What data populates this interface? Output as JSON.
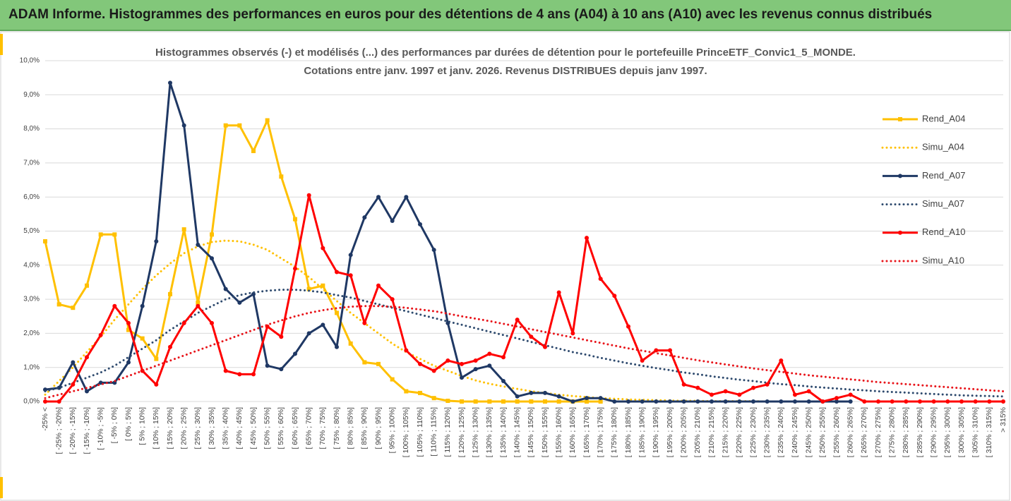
{
  "header": {
    "title": "ADAM Informe. Histogrammes des performances en euros pour des détentions de 4 ans (A04) à 10 ans (A10) avec les revenus connus distribués"
  },
  "chart_data": {
    "type": "line",
    "title": "Histogrammes observés (-) et modélisés (...) des performances  par durées de détention pour le portefeuille PrinceETF_Convic1_5_MONDE.",
    "subtitle": "Cotations  entre  janv. 1997 et janv. 2026. Revenus DISTRIBUES depuis janv 1997.",
    "categories": [
      "-25% <",
      "[ -25% ; -20%]",
      "[ -20% ; -15%]",
      "[ -15% ; -10%]",
      "[ -10% ; -5%]",
      "[ -5% ; 0%]",
      "[ 0% ; 5%]",
      "[ 5% ; 10%]",
      "[ 10% ; 15%]",
      "[ 15% ; 20%]",
      "[ 20% ; 25%]",
      "[ 25% ; 30%]",
      "[ 30% ; 35%]",
      "[ 35% ; 40%]",
      "[ 40% ; 45%]",
      "[ 45% ; 50%]",
      "[ 50% ; 55%]",
      "[ 55% ; 60%]",
      "[ 60% ; 65%]",
      "[ 65% ; 70%]",
      "[ 70% ; 75%]",
      "[ 75% ; 80%]",
      "[ 80% ; 85%]",
      "[ 85% ; 90%]",
      "[ 90% ; 95%]",
      "[ 95% ; 100%]",
      "[ 100% ; 105%]",
      "[ 105% ; 110%]",
      "[ 110% ; 115%]",
      "[ 115% ; 120%]",
      "[ 120% ; 125%]",
      "[ 125% ; 130%]",
      "[ 130% ; 135%]",
      "[ 135% ; 140%]",
      "[ 140% ; 145%]",
      "[ 145% ; 150%]",
      "[ 150% ; 155%]",
      "[ 155% ; 160%]",
      "[ 160% ; 165%]",
      "[ 165% ; 170%]",
      "[ 170% ; 175%]",
      "[ 175% ; 180%]",
      "[ 180% ; 185%]",
      "[ 185% ; 190%]",
      "[ 190% ; 195%]",
      "[ 195% ; 200%]",
      "[ 200% ; 205%]",
      "[ 205% ; 210%]",
      "[ 210% ; 215%]",
      "[ 215% ; 220%]",
      "[ 220% ; 225%]",
      "[ 225% ; 230%]",
      "[ 230% ; 235%]",
      "[ 235% ; 240%]",
      "[ 240% ; 245%]",
      "[ 245% ; 250%]",
      "[ 250% ; 255%]",
      "[ 255% ; 260%]",
      "[ 260% ; 265%]",
      "[ 265% ; 270%]",
      "[ 270% ; 275%]",
      "[ 275% ; 280%]",
      "[ 280% ; 285%]",
      "[ 285% ; 290%]",
      "[ 290% ; 295%]",
      "[ 295% ; 300%]",
      "[ 300% ; 305%]",
      "[ 305% ; 310%]",
      "[ 310% ; 315%]",
      "> 315%"
    ],
    "series": [
      {
        "name": "Rend_A04",
        "color": "#ffc000",
        "style": "solid",
        "marker": "square",
        "values": [
          4.7,
          2.85,
          2.75,
          3.4,
          4.9,
          4.9,
          2.1,
          1.85,
          1.25,
          3.15,
          5.05,
          2.9,
          4.9,
          8.1,
          8.1,
          7.35,
          8.25,
          6.6,
          5.35,
          3.3,
          3.4,
          2.6,
          1.7,
          1.15,
          1.1,
          0.65,
          0.3,
          0.25,
          0.1,
          0.02,
          0,
          0,
          0,
          0,
          0,
          0,
          0,
          0,
          0,
          0,
          0,
          null,
          null,
          null,
          null,
          null,
          null,
          null,
          null,
          null,
          null,
          null,
          null,
          null,
          null,
          null,
          null,
          null,
          null,
          null,
          null,
          null,
          null,
          null,
          null,
          null,
          null,
          null,
          null,
          null
        ]
      },
      {
        "name": "Simu_A04",
        "color": "#ffc000",
        "style": "dotted",
        "values": [
          0.2,
          0.6,
          1.0,
          1.45,
          1.9,
          2.4,
          2.85,
          3.3,
          3.7,
          4.05,
          4.35,
          4.55,
          4.68,
          4.72,
          4.7,
          4.6,
          4.45,
          4.2,
          3.95,
          3.65,
          3.3,
          2.95,
          2.6,
          2.3,
          2.0,
          1.7,
          1.45,
          1.25,
          1.05,
          0.9,
          0.75,
          0.62,
          0.52,
          0.44,
          0.37,
          0.3,
          0.25,
          0.2,
          0.16,
          0.13,
          0.1,
          0.08,
          0.06,
          0.05,
          0.04,
          0.03,
          0.02,
          0.02,
          0.01,
          0.01,
          0.01,
          0.01,
          0,
          0,
          0,
          0,
          null,
          null,
          null,
          null,
          null,
          null,
          null,
          null,
          null,
          null,
          null,
          null,
          null,
          null
        ]
      },
      {
        "name": "Rend_A07",
        "color": "#1f3864",
        "style": "solid",
        "marker": "circle",
        "values": [
          0.35,
          0.4,
          1.15,
          0.3,
          0.55,
          0.55,
          1.15,
          2.8,
          4.7,
          9.35,
          8.1,
          4.6,
          4.2,
          3.3,
          2.9,
          3.15,
          1.05,
          0.95,
          1.4,
          2.0,
          2.25,
          1.6,
          4.3,
          5.4,
          6.0,
          5.3,
          6.0,
          5.2,
          4.45,
          2.3,
          0.7,
          0.95,
          1.05,
          0.6,
          0.15,
          0.25,
          0.25,
          0.15,
          0,
          0.1,
          0.1,
          0,
          0,
          0,
          0,
          0,
          0,
          0,
          0,
          0,
          0,
          0,
          0,
          0,
          0,
          0,
          0,
          0,
          0,
          null,
          null,
          null,
          null,
          null,
          null,
          null,
          null,
          null,
          null,
          null
        ]
      },
      {
        "name": "Simu_A07",
        "color": "#2e4a6e",
        "style": "dotted",
        "values": [
          0.3,
          0.4,
          0.55,
          0.7,
          0.85,
          1.05,
          1.3,
          1.55,
          1.8,
          2.1,
          2.35,
          2.6,
          2.8,
          3.0,
          3.12,
          3.2,
          3.25,
          3.28,
          3.28,
          3.25,
          3.2,
          3.12,
          3.05,
          2.95,
          2.85,
          2.75,
          2.65,
          2.55,
          2.45,
          2.35,
          2.25,
          2.15,
          2.05,
          1.95,
          1.85,
          1.75,
          1.65,
          1.55,
          1.45,
          1.37,
          1.28,
          1.2,
          1.12,
          1.05,
          0.98,
          0.92,
          0.85,
          0.8,
          0.74,
          0.69,
          0.64,
          0.6,
          0.55,
          0.51,
          0.48,
          0.44,
          0.41,
          0.38,
          0.35,
          0.33,
          0.3,
          0.28,
          0.26,
          0.24,
          0.22,
          0.2,
          0.18,
          0.17,
          0.16,
          0.15
        ]
      },
      {
        "name": "Rend_A10",
        "color": "#ff0000",
        "style": "solid",
        "marker": "circle",
        "values": [
          0,
          0,
          0.5,
          1.3,
          1.95,
          2.8,
          2.3,
          0.9,
          0.5,
          1.6,
          2.3,
          2.8,
          2.3,
          0.9,
          0.8,
          0.8,
          2.2,
          1.9,
          3.9,
          6.05,
          4.5,
          3.8,
          3.7,
          2.3,
          3.4,
          3.0,
          1.5,
          1.1,
          0.9,
          1.2,
          1.1,
          1.2,
          1.4,
          1.3,
          2.4,
          1.9,
          1.6,
          3.2,
          2.0,
          4.8,
          3.6,
          3.1,
          2.2,
          1.2,
          1.5,
          1.5,
          0.5,
          0.4,
          0.2,
          0.3,
          0.2,
          0.4,
          0.5,
          1.2,
          0.2,
          0.3,
          0,
          0.1,
          0.2,
          0,
          0,
          0,
          0,
          0,
          0,
          0,
          0,
          0,
          0,
          0
        ]
      },
      {
        "name": "Simu_A10",
        "color": "#e8141a",
        "style": "dotted",
        "values": [
          0.1,
          0.2,
          0.3,
          0.4,
          0.5,
          0.6,
          0.75,
          0.9,
          1.05,
          1.2,
          1.35,
          1.5,
          1.65,
          1.8,
          1.95,
          2.1,
          2.25,
          2.38,
          2.5,
          2.6,
          2.68,
          2.74,
          2.78,
          2.8,
          2.8,
          2.78,
          2.75,
          2.7,
          2.65,
          2.58,
          2.5,
          2.43,
          2.36,
          2.28,
          2.2,
          2.12,
          2.04,
          1.96,
          1.88,
          1.8,
          1.72,
          1.64,
          1.56,
          1.49,
          1.42,
          1.35,
          1.28,
          1.21,
          1.15,
          1.09,
          1.03,
          0.97,
          0.92,
          0.87,
          0.82,
          0.77,
          0.73,
          0.69,
          0.65,
          0.61,
          0.57,
          0.54,
          0.51,
          0.48,
          0.45,
          0.42,
          0.39,
          0.36,
          0.33,
          0.3
        ]
      }
    ],
    "ylim": [
      0,
      10
    ],
    "yticks": [
      {
        "value": 0,
        "label": "0,0%"
      },
      {
        "value": 1,
        "label": "1,0%"
      },
      {
        "value": 2,
        "label": "2,0%"
      },
      {
        "value": 3,
        "label": "3,0%"
      },
      {
        "value": 4,
        "label": "4,0%"
      },
      {
        "value": 5,
        "label": "5,0%"
      },
      {
        "value": 6,
        "label": "6,0%"
      },
      {
        "value": 7,
        "label": "7,0%"
      },
      {
        "value": 8,
        "label": "8,0%"
      },
      {
        "value": 9,
        "label": "9,0%"
      },
      {
        "value": 10,
        "label": "10,0%"
      }
    ],
    "grid": true,
    "legend": "right"
  }
}
